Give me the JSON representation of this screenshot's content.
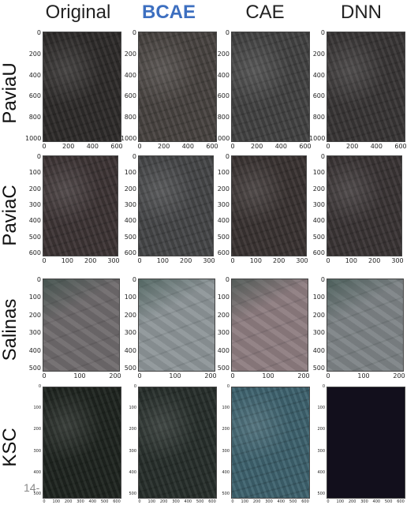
{
  "columns": [
    "Original",
    "BCAE",
    "CAE",
    "DNN"
  ],
  "rows": [
    {
      "label": "PaviaU",
      "yticks": [
        "0",
        "200",
        "400",
        "600",
        "800",
        "1000"
      ],
      "xticks": [
        "0",
        "200",
        "400",
        "600"
      ]
    },
    {
      "label": "PaviaC",
      "yticks": [
        "0",
        "100",
        "200",
        "300",
        "400",
        "500",
        "600"
      ],
      "xticks": [
        "0",
        "100",
        "200",
        "300"
      ]
    },
    {
      "label": "Salinas",
      "yticks": [
        "0",
        "100",
        "200",
        "300",
        "400",
        "500"
      ],
      "xticks": [
        "0",
        "100",
        "200"
      ]
    },
    {
      "label": "KSC",
      "yticks": [
        "0",
        "100",
        "200",
        "300",
        "400",
        "500"
      ],
      "xticks": [
        "0",
        "100",
        "200",
        "300",
        "400",
        "500",
        "600"
      ]
    }
  ],
  "page_number": "14-",
  "colors": {
    "bcae_header": "#3d6fc0"
  },
  "image_tones": {
    "PaviaU": [
      "#2f2c2b",
      "#4a4542",
      "#444444",
      "#3a3737"
    ],
    "PaviaC": [
      "#3e3536",
      "#47484a",
      "#3b3433",
      "#3b3536"
    ],
    "Salinas": [
      "#6f6a6c",
      "#8d9598",
      "#8d7c80",
      "#7d8386"
    ],
    "KSC": [
      "#1f2520",
      "#28302c",
      "#3f6470",
      "#120f1c"
    ]
  }
}
